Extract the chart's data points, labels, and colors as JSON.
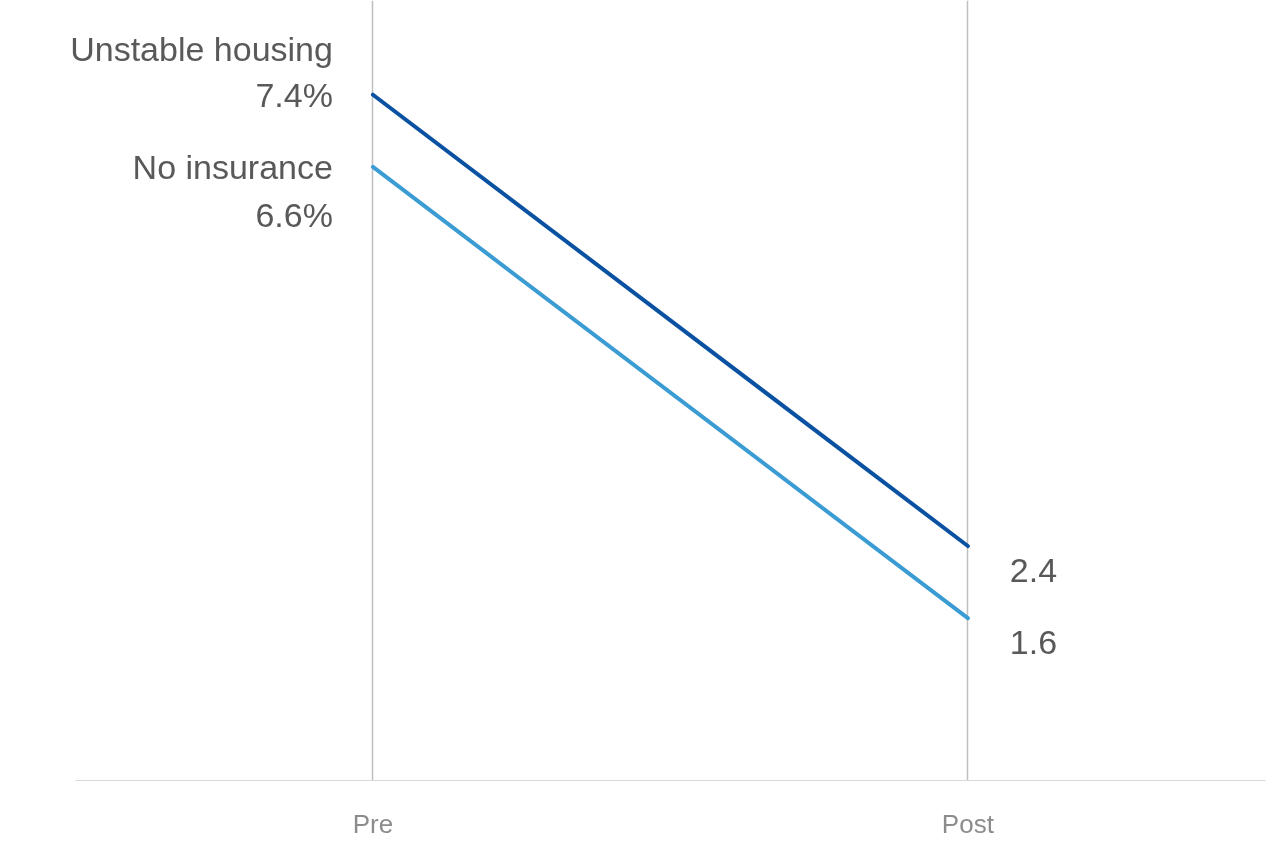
{
  "chart_data": {
    "type": "line",
    "categories": [
      "Pre",
      "Post"
    ],
    "series": [
      {
        "name": "Unstable housing",
        "color": "#0a52a1",
        "values": [
          7.4,
          2.4
        ],
        "value_labels": [
          "7.4%",
          "2.4"
        ]
      },
      {
        "name": "No insurance",
        "color": "#3b9bd3",
        "values": [
          6.6,
          1.6
        ],
        "value_labels": [
          "6.6%",
          "1.6"
        ]
      }
    ],
    "grid": "x",
    "line_style": "solid",
    "marker": "none"
  }
}
